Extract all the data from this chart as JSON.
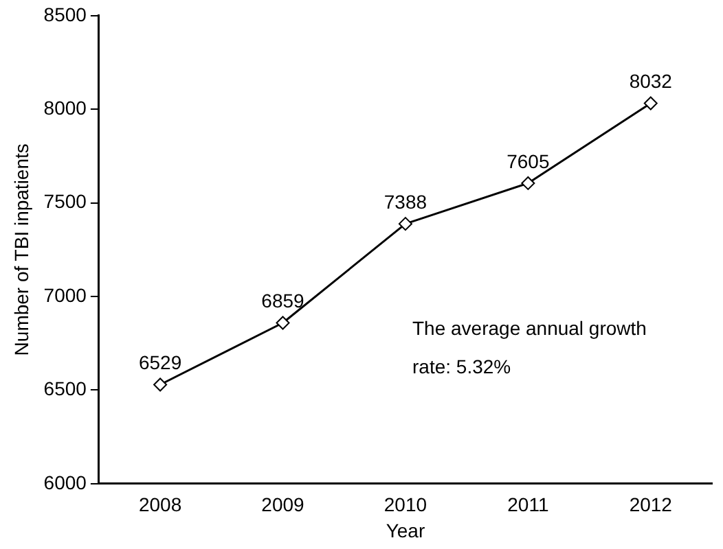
{
  "chart_data": {
    "type": "line",
    "xlabel": "Year",
    "ylabel": "Number of TBI inpatients",
    "categories": [
      "2008",
      "2009",
      "2010",
      "2011",
      "2012"
    ],
    "series": [
      {
        "color": "#000000",
        "values": [
          6529,
          6859,
          7388,
          7605,
          8032
        ]
      }
    ],
    "ylim": [
      6000,
      8500
    ],
    "yticks": [
      6000,
      6500,
      7000,
      7500,
      8000,
      8500
    ],
    "grid": false,
    "legend": false,
    "marker": "diamond",
    "line_style": "solid",
    "data_labels": true,
    "annotations": [
      "The average annual growth rate: 5.32%"
    ]
  }
}
